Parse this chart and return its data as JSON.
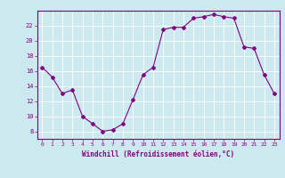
{
  "x": [
    0,
    1,
    2,
    3,
    4,
    5,
    6,
    7,
    8,
    9,
    10,
    11,
    12,
    13,
    14,
    15,
    16,
    17,
    18,
    19,
    20,
    21,
    22,
    23
  ],
  "y": [
    16.5,
    15.2,
    13.0,
    13.5,
    10.0,
    9.0,
    8.0,
    8.2,
    9.0,
    12.2,
    15.5,
    16.5,
    21.5,
    21.8,
    21.8,
    23.0,
    23.2,
    23.5,
    23.2,
    23.0,
    19.2,
    19.0,
    15.5,
    13.0
  ],
  "xlabel": "Windchill (Refroidissement éolien,°C)",
  "ylim": [
    7,
    24
  ],
  "xlim": [
    -0.5,
    23.5
  ],
  "yticks": [
    8,
    10,
    12,
    14,
    16,
    18,
    20,
    22
  ],
  "xticks": [
    0,
    1,
    2,
    3,
    4,
    5,
    6,
    7,
    8,
    9,
    10,
    11,
    12,
    13,
    14,
    15,
    16,
    17,
    18,
    19,
    20,
    21,
    22,
    23
  ],
  "line_color": "#800080",
  "marker": "D",
  "marker_size": 2,
  "bg_color": "#cce9f0",
  "grid_color": "#ffffff",
  "label_color": "#800080"
}
